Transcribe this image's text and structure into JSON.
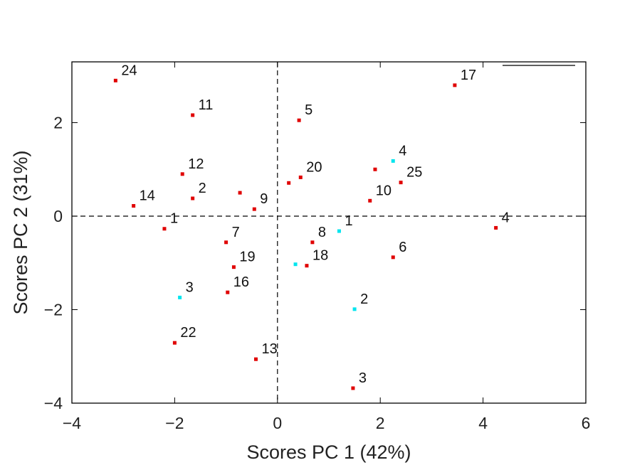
{
  "chart_data": {
    "type": "scatter",
    "title": "",
    "xlabel": "Scores PC 1 (42%)",
    "ylabel": "Scores PC 2 (31%)",
    "xlim": [
      -4,
      6
    ],
    "ylim": [
      -4,
      3.3
    ],
    "xticks": [
      -4,
      -2,
      0,
      2,
      4,
      6
    ],
    "xtick_labels": [
      "−4",
      "−2",
      "0",
      "2",
      "4",
      "6"
    ],
    "yticks": [
      -4,
      -2,
      0,
      2
    ],
    "ytick_labels": [
      "−4",
      "−2",
      "0",
      "2"
    ],
    "reference_lines": {
      "x": 0,
      "y": 0,
      "style": "dashed"
    },
    "legend": {
      "position": "top-right",
      "entries": [
        {
          "name": "",
          "color": "#000000",
          "marker": "line"
        }
      ]
    },
    "series": [
      {
        "name": "red",
        "color": "#e00000",
        "points": [
          {
            "label": "24",
            "x": -3.15,
            "y": 2.9
          },
          {
            "label": "11",
            "x": -1.65,
            "y": 2.16
          },
          {
            "label": "5",
            "x": 0.42,
            "y": 2.05
          },
          {
            "label": "17",
            "x": 3.45,
            "y": 2.8
          },
          {
            "label": "12",
            "x": -1.85,
            "y": 0.9
          },
          {
            "label": "2",
            "x": -1.65,
            "y": 0.38
          },
          {
            "label": "14",
            "x": -2.8,
            "y": 0.22
          },
          {
            "label": "1",
            "x": -2.2,
            "y": -0.27
          },
          {
            "label": "",
            "x": -0.73,
            "y": 0.5
          },
          {
            "label": "9",
            "x": -0.45,
            "y": 0.15
          },
          {
            "label": "",
            "x": 0.22,
            "y": 0.71
          },
          {
            "label": "20",
            "x": 0.45,
            "y": 0.83
          },
          {
            "label": "",
            "x": 1.9,
            "y": 1.0
          },
          {
            "label": "25",
            "x": 2.4,
            "y": 0.72
          },
          {
            "label": "10",
            "x": 1.8,
            "y": 0.33
          },
          {
            "label": "4",
            "x": 4.25,
            "y": -0.25
          },
          {
            "label": "7",
            "x": -1.0,
            "y": -0.56
          },
          {
            "label": "8",
            "x": 0.68,
            "y": -0.56
          },
          {
            "label": "6",
            "x": 2.25,
            "y": -0.88
          },
          {
            "label": "19",
            "x": -0.85,
            "y": -1.09
          },
          {
            "label": "18",
            "x": 0.57,
            "y": -1.06
          },
          {
            "label": "16",
            "x": -0.97,
            "y": -1.63
          },
          {
            "label": "22",
            "x": -2.0,
            "y": -2.71
          },
          {
            "label": "13",
            "x": -0.42,
            "y": -3.06
          },
          {
            "label": "3",
            "x": 1.47,
            "y": -3.68
          }
        ]
      },
      {
        "name": "cyan",
        "color": "#00e5ee",
        "points": [
          {
            "label": "4",
            "x": 2.25,
            "y": 1.18
          },
          {
            "label": "1",
            "x": 1.2,
            "y": -0.32
          },
          {
            "label": "",
            "x": 0.35,
            "y": -1.03
          },
          {
            "label": "3",
            "x": -1.9,
            "y": -1.74
          },
          {
            "label": "2",
            "x": 1.5,
            "y": -1.99
          }
        ]
      }
    ]
  }
}
